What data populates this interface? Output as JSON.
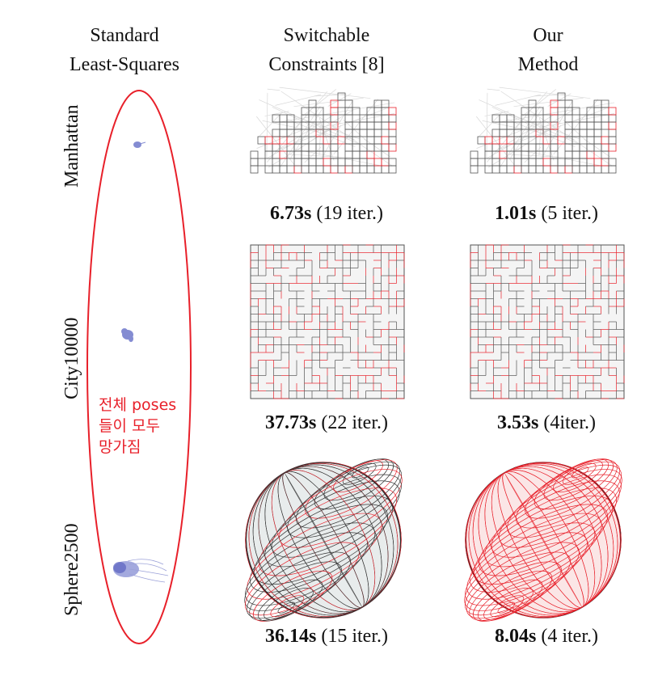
{
  "columns": [
    {
      "line1": "Standard",
      "line2": "Least-Squares"
    },
    {
      "line1": "Switchable",
      "line2": "Constraints [8]"
    },
    {
      "line1": "Our",
      "line2": "Method"
    }
  ],
  "rows": [
    "Manhattan",
    "City10000",
    "Sphere2500"
  ],
  "results": {
    "switchable": [
      {
        "time": "6.73s",
        "iter": "(19 iter.)"
      },
      {
        "time": "37.73s",
        "iter": "(22 iter.)"
      },
      {
        "time": "36.14s",
        "iter": "(15 iter.)"
      }
    ],
    "ours": [
      {
        "time": "1.01s",
        "iter": "(5 iter.)"
      },
      {
        "time": "3.53s",
        "iter": "(4iter.)"
      },
      {
        "time": "8.04s",
        "iter": "(4 iter.)"
      }
    ]
  },
  "annotation": {
    "line1": "전체 poses",
    "line2": "들이 모두",
    "line3": "망가짐",
    "color": "#e8202a"
  },
  "colors": {
    "grid_gray": "#555555",
    "outlier_red": "#e8202a",
    "collapsed_blue": "#6670c8"
  }
}
